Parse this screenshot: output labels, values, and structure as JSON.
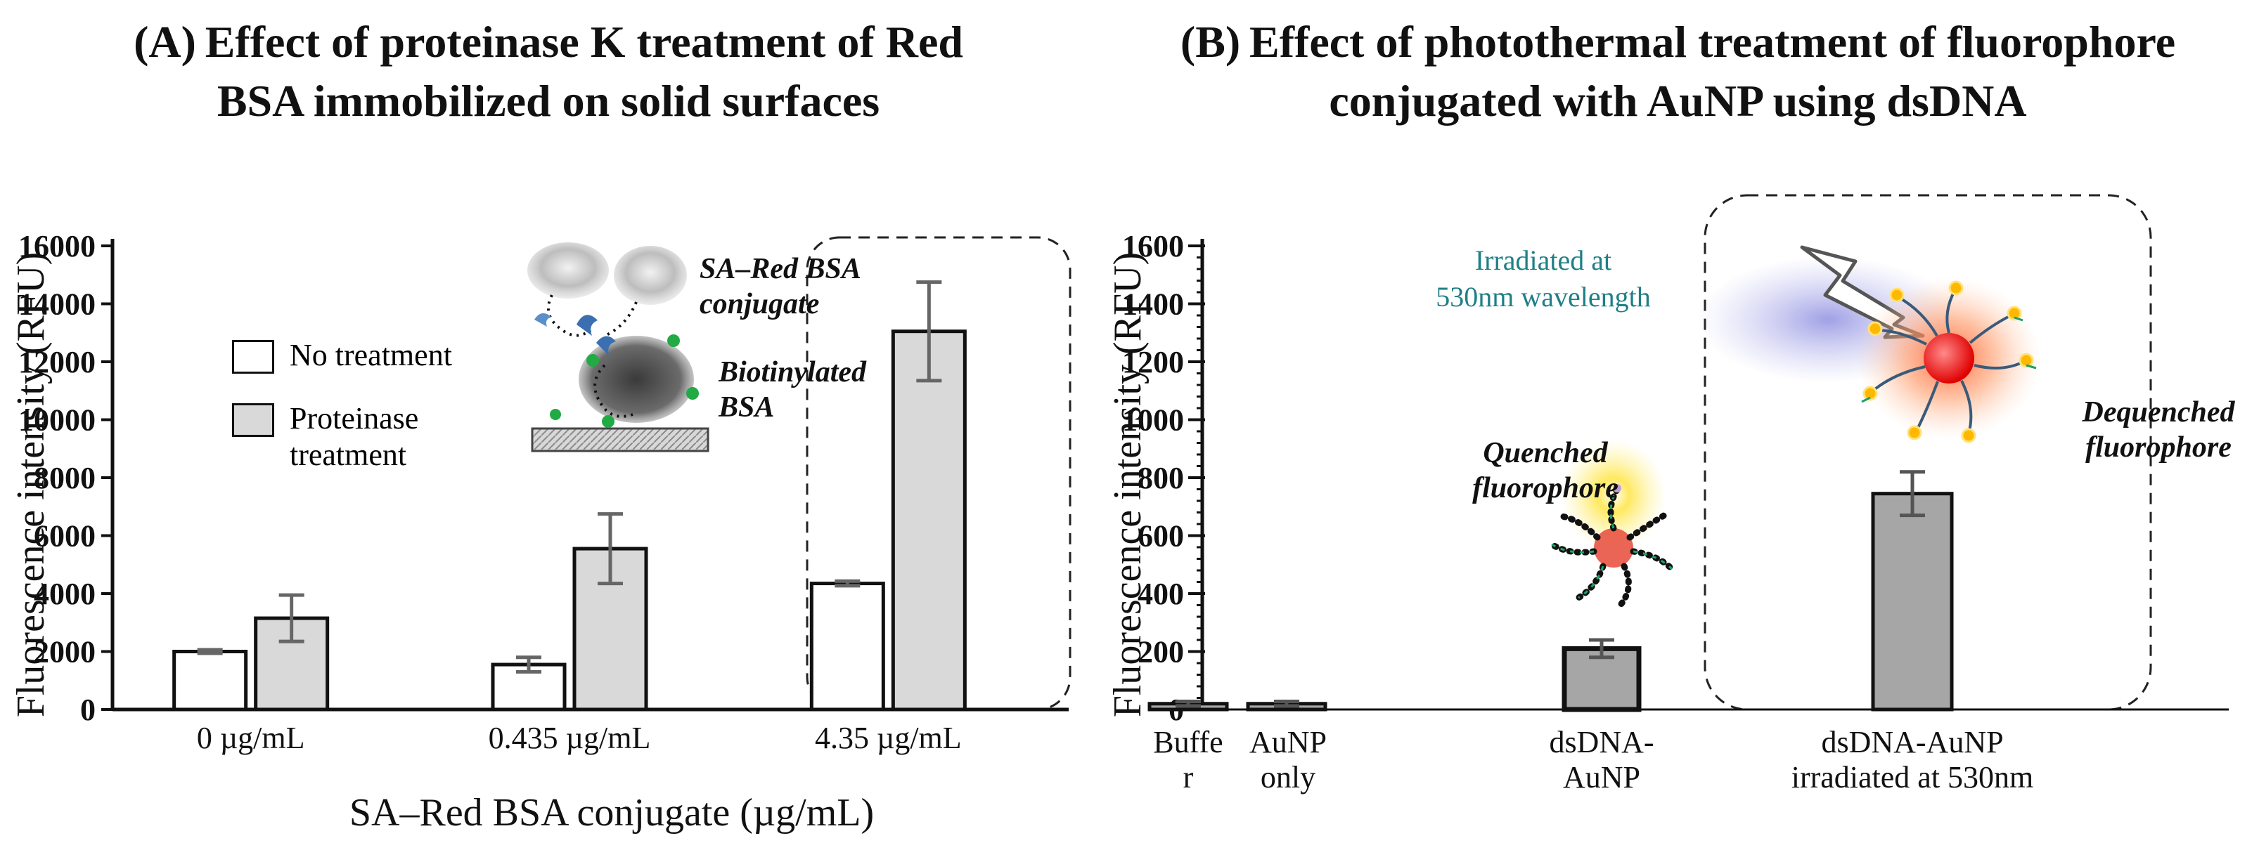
{
  "panel_a": {
    "title_line1": "(A) Effect of proteinase K treatment of Red",
    "title_line2": "BSA immobilized on solid surfaces",
    "legend": [
      "No treatment",
      "Proteinase treatment"
    ],
    "inset_labels": {
      "conjugate_line1": "SA–Red BSA",
      "conjugate_line2": "conjugate",
      "biotin_line1": "Biotinylated",
      "biotin_line2": "BSA"
    }
  },
  "panel_b": {
    "title_line1": "(B) Effect of photothermal treatment of fluorophore",
    "title_line2": "conjugated with AuNP using dsDNA",
    "irradiated_line1": "Irradiated at",
    "irradiated_line2": "530nm wavelength",
    "quenched_line1": "Quenched",
    "quenched_line2": "fluorophore",
    "dequenched_line1": "Dequenched",
    "dequenched_line2": "fluorophore",
    "xtick_lines": [
      [
        "Buffe",
        "r"
      ],
      [
        "AuNP",
        "only"
      ],
      [
        "dsDNA-",
        "AuNP"
      ],
      [
        "dsDNA-AuNP",
        "irradiated at 530nm"
      ]
    ]
  },
  "colors": {
    "no_treatment": "#ffffff",
    "proteinase": "#d9d9d9",
    "bar_b": "#a6a6a6",
    "teal": "#1f7f86"
  },
  "chart_data": [
    {
      "type": "bar",
      "title": "(A) Effect of proteinase K treatment of Red BSA immobilized on solid surfaces",
      "categories": [
        "0 µg/mL",
        "0.435 µg/mL",
        "4.35 µg/mL"
      ],
      "series": [
        {
          "name": "No treatment",
          "values": [
            2000,
            1550,
            4350
          ],
          "errors": [
            60,
            250,
            80
          ]
        },
        {
          "name": "Proteinase treatment",
          "values": [
            3150,
            5550,
            13050
          ],
          "errors": [
            800,
            1200,
            1700
          ]
        }
      ],
      "xlabel": "SA–Red BSA conjugate (µg/mL)",
      "ylabel": "Fluorescence intensity (RFU)",
      "ylim": [
        0,
        16000
      ],
      "yticks": [
        0,
        2000,
        4000,
        6000,
        8000,
        10000,
        12000,
        14000,
        16000
      ],
      "ytick_labels": [
        "0",
        "2000",
        "4000",
        "6000",
        "8000",
        "10000",
        "12000",
        "14000",
        "16000"
      ],
      "legend_position": "upper-left"
    },
    {
      "type": "bar",
      "title": "(B) Effect of photothermal treatment of fluorophore conjugated with AuNP using dsDNA",
      "categories": [
        "Buffer",
        "AuNP only",
        "dsDNA-AuNP",
        "dsDNA-AuNP irradiated at 530nm"
      ],
      "values": [
        20,
        20,
        210,
        745
      ],
      "errors": [
        8,
        8,
        30,
        75
      ],
      "xlabel": "",
      "ylabel": "Fluorescence intensity (RFU)",
      "ylim": [
        0,
        1600
      ],
      "yticks": [
        0,
        200,
        400,
        600,
        800,
        1000,
        1200,
        1400,
        1600
      ],
      "ytick_labels": [
        "0",
        "200",
        "400",
        "600",
        "800",
        "1000",
        "1200",
        "1400",
        "1600"
      ]
    }
  ]
}
